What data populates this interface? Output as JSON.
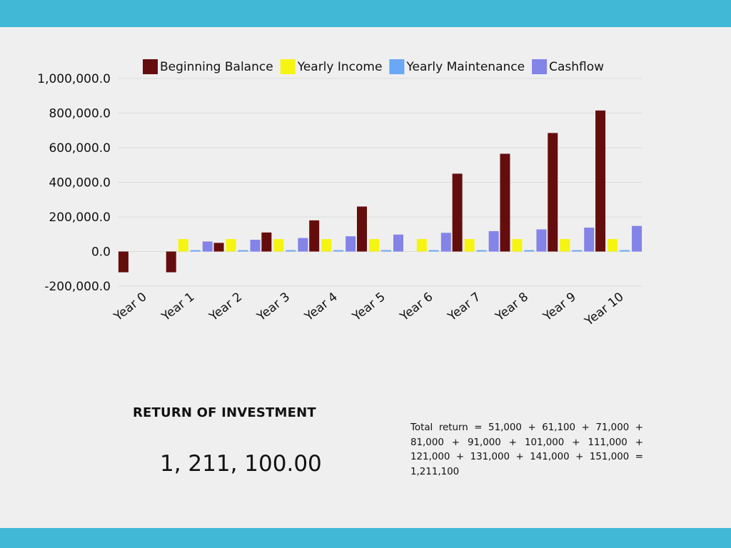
{
  "colors": {
    "band": "#41b8d6",
    "background": "#efefef",
    "gridline": "#dcdcdc"
  },
  "chart_data": {
    "type": "bar",
    "categories": [
      "Year 0",
      "Year 1",
      "Year 2",
      "Year 3",
      "Year 4",
      "Year 5",
      "Year 6",
      "Year 7",
      "Year 8",
      "Year 9",
      "Year 10"
    ],
    "series": [
      {
        "name": "Beginning Balance",
        "color": "#650d0d",
        "values": [
          -120000,
          -120000,
          50000,
          110000,
          180000,
          260000,
          0,
          450000,
          565000,
          685000,
          815000
        ]
      },
      {
        "name": "Yearly Income",
        "color": "#f5f511",
        "values": [
          0,
          72000,
          72000,
          72000,
          72000,
          72000,
          72000,
          72000,
          72000,
          72000,
          72000
        ]
      },
      {
        "name": "Yearly Maintenance",
        "color": "#6aa7f5",
        "values": [
          0,
          8000,
          8000,
          8000,
          8000,
          8000,
          8000,
          8000,
          8000,
          8000,
          8000
        ]
      },
      {
        "name": "Cashflow",
        "color": "#8383e8",
        "values": [
          0,
          58000,
          68000,
          78000,
          88000,
          98000,
          108000,
          118000,
          128000,
          138000,
          148000
        ]
      }
    ],
    "yticks": [
      -200000,
      0,
      200000,
      400000,
      600000,
      800000,
      1000000
    ],
    "ytick_labels": [
      "-200,000.0",
      "0.0",
      "200,000.0",
      "400,000.0",
      "600,000.0",
      "800,000.0",
      "1,000,000.0"
    ],
    "ylim": [
      -200000,
      1000000
    ],
    "grid": true,
    "legend_position": "top",
    "title": "",
    "xlabel": "",
    "ylabel": ""
  },
  "roi": {
    "heading": "RETURN OF INVESTMENT",
    "amount": "1, 211, 100.00",
    "formula": "Total return = 51,000 + 61,100 + 71,000 + 81,000 + 91,000 + 101,000 + 111,000 + 121,000 + 131,000 + 141,000 + 151,000 = 1,211,100"
  }
}
